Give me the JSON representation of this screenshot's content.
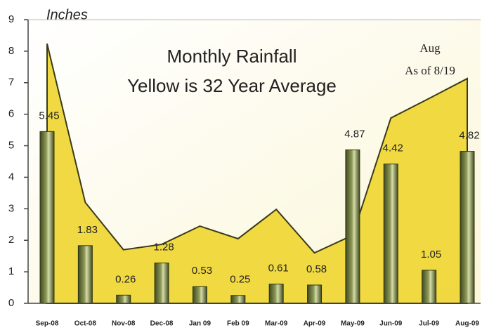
{
  "chart_data": {
    "type": "bar",
    "title": "Monthly Rainfall",
    "subtitle": "Yellow is 32 Year Average",
    "y_label": "Inches",
    "annotation": [
      "Aug",
      "As of 8/19"
    ],
    "categories": [
      "Sep-08",
      "Oct-08",
      "Nov-08",
      "Dec-08",
      "Jan 09",
      "Feb 09",
      "Mar-09",
      "Apr-09",
      "May-09",
      "Jun-09",
      "Jul-09",
      "Aug-09"
    ],
    "series": [
      {
        "type": "bar",
        "color": "#8f9a5a",
        "values": [
          5.45,
          1.83,
          0.26,
          1.28,
          0.53,
          0.25,
          0.61,
          0.58,
          4.87,
          4.42,
          1.05,
          4.82
        ],
        "value_labels": [
          "5.45",
          "1.83",
          "0.26",
          "1.28",
          "0.53",
          "0.25",
          "0.61",
          "0.58",
          "4.87",
          "4.42",
          "1.05",
          "4.82"
        ]
      },
      {
        "type": "area",
        "color": "#f0d530",
        "values": [
          8.24,
          3.2,
          1.7,
          1.87,
          2.45,
          2.05,
          2.98,
          1.6,
          2.16,
          5.88,
          6.5,
          7.13
        ]
      }
    ],
    "ylim": [
      0,
      9
    ],
    "yticks": [
      0,
      1,
      2,
      3,
      4,
      5,
      6,
      7,
      8,
      9
    ]
  }
}
